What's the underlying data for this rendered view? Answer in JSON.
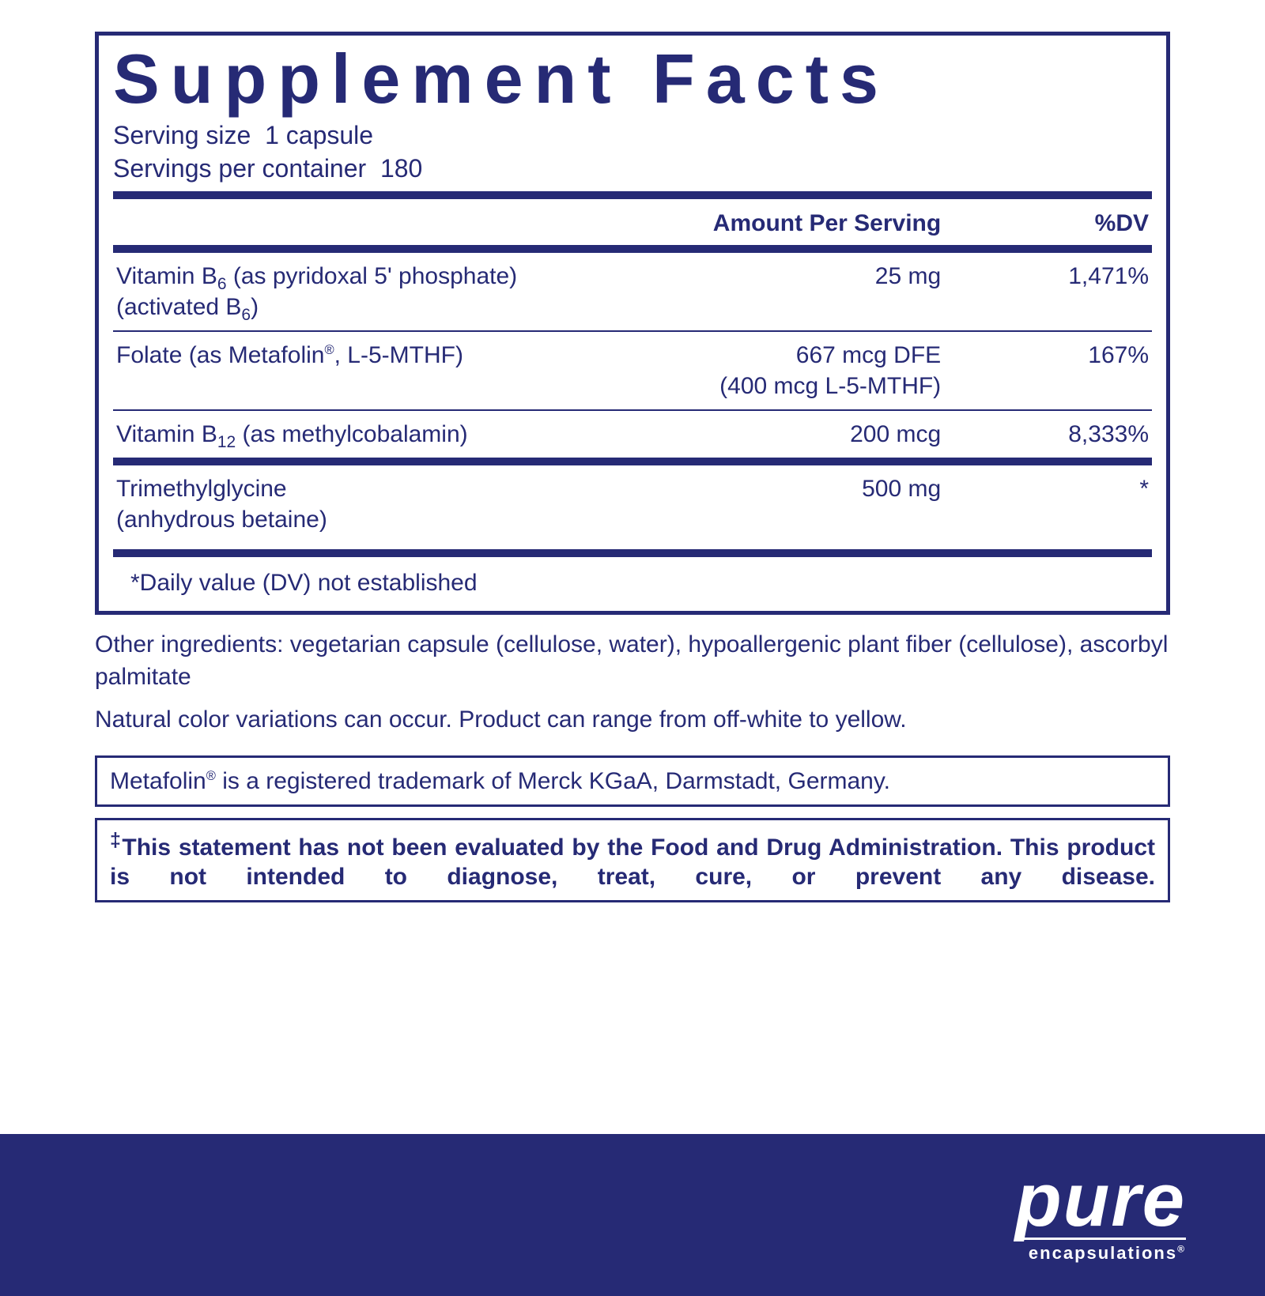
{
  "colors": {
    "primary": "#262a75",
    "background": "#ffffff",
    "brand_text": "#ffffff"
  },
  "title": "Supplement Facts",
  "serving_size_label": "Serving size",
  "serving_size_value": "1 capsule",
  "servings_per_container_label": "Servings per container",
  "servings_per_container_value": "180",
  "headers": {
    "amount": "Amount Per Serving",
    "dv": "%DV"
  },
  "rows": [
    {
      "name_html": "Vitamin B<span class=\"sub\">6</span> (as pyridoxal 5' phosphate)<br>(activated B<span class=\"sub\">6</span>)",
      "amount": "25 mg",
      "dv": "1,471%",
      "thick_before": true
    },
    {
      "name_html": "Folate (as Metafolin<span class=\"reg\">®</span>, L-5-MTHF)",
      "amount_html": "667 mcg DFE<br>(400 mcg L-5-MTHF)",
      "dv": "167%"
    },
    {
      "name_html": "Vitamin B<span class=\"sub\">12</span> (as methylcobalamin)",
      "amount": "200 mcg",
      "dv": "8,333%"
    },
    {
      "name_html": "Trimethylglycine<br>(anhydrous betaine)",
      "amount": "500 mg",
      "dv": "*",
      "thick_before": true
    }
  ],
  "footnote": "*Daily value (DV) not established",
  "other_ingredients": "Other ingredients: vegetarian capsule (cellulose, water), hypoallergenic plant fiber (cellulose), ascorbyl palmitate",
  "color_variations": "Natural color variations can occur. Product can range from off-white to yellow.",
  "trademark_html": "Metafolin<span class=\"reg\">®</span> is a registered trademark of Merck KGaA, Darmstadt, Germany.",
  "fda_html": "<sup>‡</sup>This statement has not been evaluated by the Food and Drug Administration. This product is not intended to diagnose, treat, cure, or prevent any disease.",
  "brand": {
    "main": "pure",
    "sub_html": "encapsulations<span class=\"reg\">®</span>"
  }
}
